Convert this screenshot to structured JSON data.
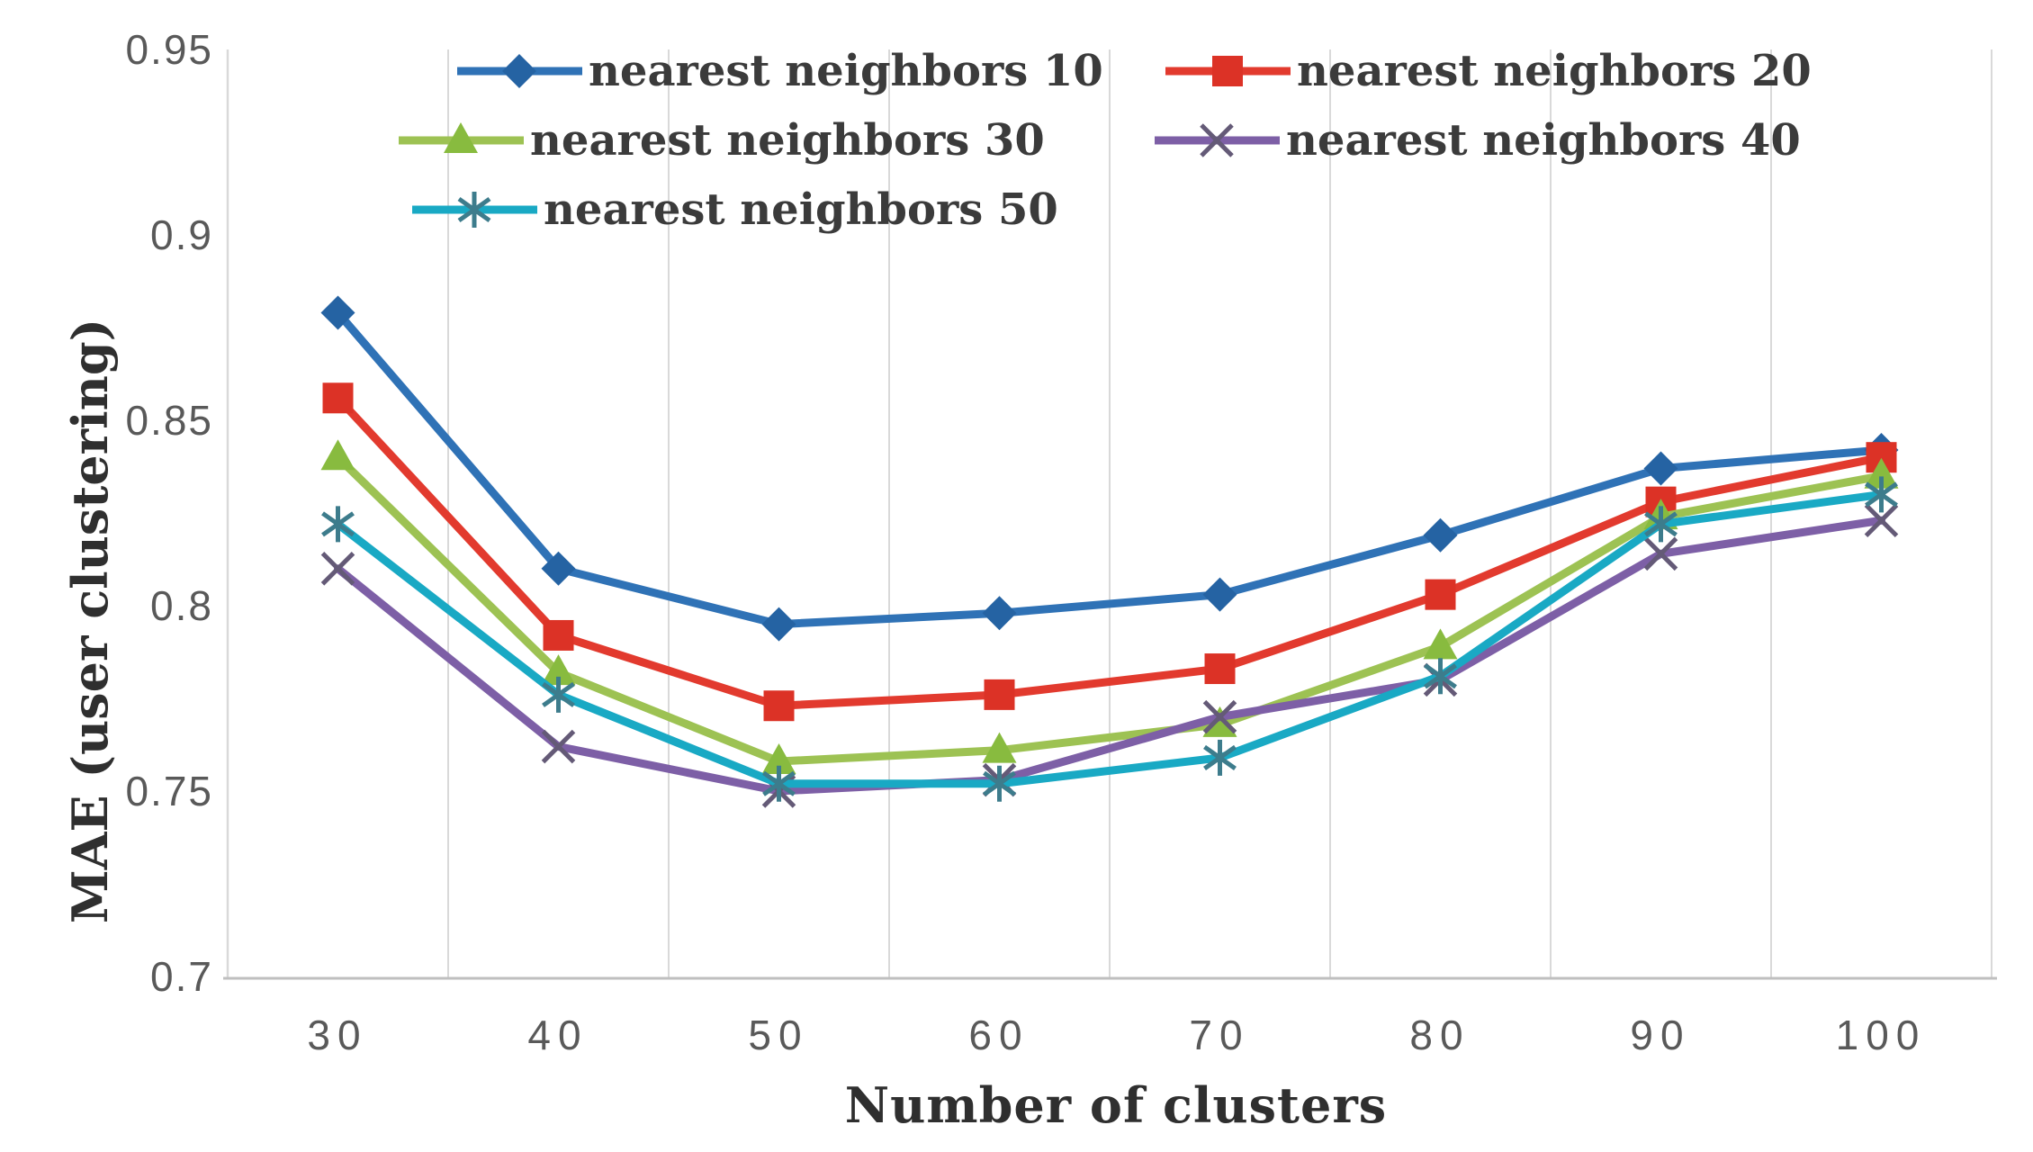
{
  "chart_data": {
    "type": "line",
    "title": "",
    "xlabel": "Number of clusters",
    "ylabel": "MAE (user clustering)",
    "categories": [
      "30",
      "40",
      "50",
      "60",
      "70",
      "80",
      "90",
      "100"
    ],
    "x_values": [
      30,
      40,
      50,
      60,
      70,
      80,
      90,
      100
    ],
    "yticks": [
      "0.95",
      "0.9",
      "0.85",
      "0.8",
      "0.75",
      "0.7"
    ],
    "ytick_values": [
      0.95,
      0.9,
      0.85,
      0.8,
      0.75,
      0.7
    ],
    "ylim": [
      0.7,
      0.95
    ],
    "grid": "vertical-only",
    "gridline_color": "#D9D9D9",
    "axis_line_color": "#BFBFBF",
    "tick_label_color": "#595959",
    "legend_position": "top-inside",
    "series": [
      {
        "name": "nearest neighbors 10",
        "marker": "diamond",
        "color": "#2F72B6",
        "marker_color": "#2563A3",
        "values": [
          0.879,
          0.81,
          0.795,
          0.798,
          0.803,
          0.819,
          0.837,
          0.842
        ]
      },
      {
        "name": "nearest neighbors 20",
        "marker": "square",
        "color": "#E23A2E",
        "marker_color": "#DC3226",
        "values": [
          0.856,
          0.792,
          0.773,
          0.776,
          0.783,
          0.803,
          0.828,
          0.84
        ]
      },
      {
        "name": "nearest neighbors 30",
        "marker": "triangle",
        "color": "#9DC253",
        "marker_color": "#88BB3F",
        "values": [
          0.84,
          0.782,
          0.758,
          0.761,
          0.768,
          0.789,
          0.824,
          0.835
        ]
      },
      {
        "name": "nearest neighbors 40",
        "marker": "x",
        "color": "#7D5FA6",
        "marker_color": "#645a77",
        "values": [
          0.81,
          0.762,
          0.75,
          0.753,
          0.77,
          0.78,
          0.814,
          0.823
        ]
      },
      {
        "name": "nearest neighbors 50",
        "marker": "asterisk",
        "color": "#19A9C4",
        "marker_color": "#3d7c8c",
        "values": [
          0.822,
          0.776,
          0.752,
          0.752,
          0.759,
          0.781,
          0.822,
          0.83
        ]
      }
    ]
  }
}
